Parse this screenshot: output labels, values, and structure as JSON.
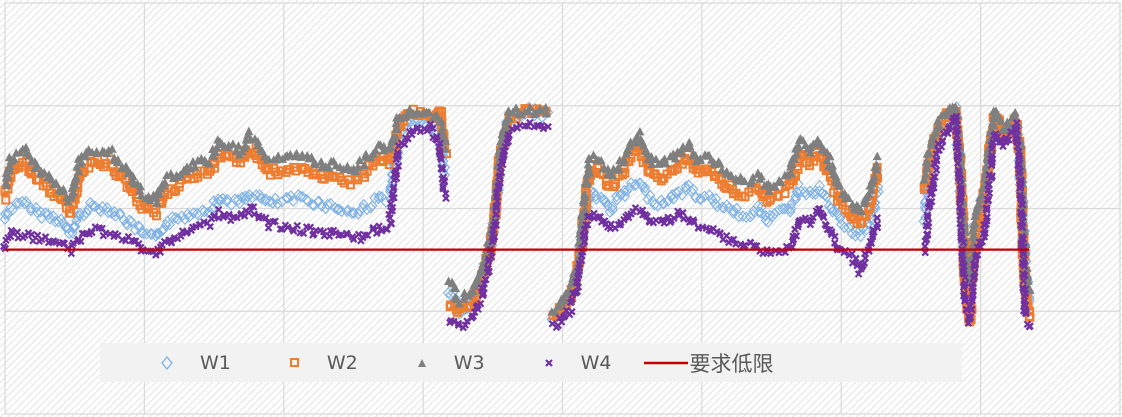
{
  "chart_data": {
    "type": "scatter",
    "title": "",
    "xlabel": "",
    "ylabel": "",
    "xlim": [
      0,
      8
    ],
    "ylim": [
      0,
      4
    ],
    "grid": true,
    "legend_position": "bottom",
    "x": [
      0,
      0.04,
      0.14,
      0.25,
      0.39,
      0.47,
      0.54,
      0.61,
      0.75,
      0.9,
      1.0,
      1.08,
      1.15,
      1.33,
      1.47,
      1.54,
      1.69,
      1.76,
      1.9,
      2.12,
      2.26,
      2.4,
      2.51,
      2.69,
      2.76,
      2.83,
      2.91,
      3.05,
      3.12,
      3.16,
      3.17,
      3.19,
      3.26,
      3.34,
      3.41,
      3.48,
      3.52,
      3.55,
      3.62,
      3.77,
      3.91,
      3.92,
      3.93,
      3.98,
      4.05,
      4.1,
      4.13,
      4.17,
      4.2,
      4.27,
      4.34,
      4.41,
      4.48,
      4.55,
      4.63,
      4.7,
      4.77,
      4.84,
      4.91,
      4.98,
      5.05,
      5.12,
      5.2,
      5.27,
      5.34,
      5.41,
      5.48,
      5.55,
      5.63,
      5.7,
      5.77,
      5.84,
      5.91,
      5.98,
      6.06,
      6.13,
      6.2,
      6.27,
      6.4,
      6.6,
      6.63,
      6.7,
      6.78,
      6.82,
      6.85,
      6.89,
      6.92,
      6.96,
      7.03,
      7.1,
      7.17,
      7.25,
      7.28,
      7.32,
      7.35
    ],
    "series": [
      {
        "name": "W1",
        "marker": "diamond",
        "color": "#7fb2e5",
        "values": [
          1.9,
          2.0,
          2.05,
          1.95,
          1.9,
          1.75,
          1.95,
          2.02,
          2.0,
          1.85,
          1.75,
          1.7,
          1.85,
          1.95,
          2.0,
          2.1,
          2.05,
          2.15,
          2.05,
          2.1,
          2.05,
          2.0,
          1.95,
          2.1,
          2.1,
          2.7,
          2.85,
          2.8,
          2.7,
          2.3,
          null,
          1.2,
          1.0,
          1.05,
          1.25,
          1.6,
          2.0,
          2.4,
          2.9,
          2.95,
          2.9,
          null,
          0.95,
          1.0,
          1.1,
          1.3,
          1.6,
          2.0,
          2.15,
          2.1,
          2.0,
          2.1,
          2.2,
          2.25,
          2.1,
          2.05,
          2.1,
          2.15,
          2.2,
          2.1,
          2.1,
          2.05,
          2.0,
          1.95,
          1.95,
          2.0,
          1.9,
          1.95,
          2.0,
          2.2,
          2.15,
          2.2,
          2.05,
          1.9,
          1.8,
          1.75,
          1.85,
          2.2,
          null,
          1.9,
          2.3,
          2.75,
          2.9,
          2.95,
          2.4,
          1.4,
          1.2,
          1.8,
          2.0,
          2.85,
          2.7,
          2.85,
          2.5,
          1.4,
          1.1
        ]
      },
      {
        "name": "W2",
        "marker": "square",
        "color": "#ed7d31",
        "values": [
          2.1,
          2.35,
          2.45,
          2.25,
          2.1,
          1.96,
          2.35,
          2.44,
          2.44,
          2.2,
          2.0,
          1.96,
          2.15,
          2.3,
          2.35,
          2.54,
          2.44,
          2.59,
          2.35,
          2.39,
          2.3,
          2.3,
          2.25,
          2.49,
          2.44,
          2.8,
          2.95,
          2.9,
          2.95,
          2.5,
          null,
          1.1,
          1.0,
          1.05,
          1.25,
          1.6,
          2.0,
          2.5,
          2.9,
          2.95,
          2.95,
          null,
          0.95,
          1.0,
          1.12,
          1.3,
          1.6,
          2.1,
          2.4,
          2.35,
          2.2,
          2.3,
          2.49,
          2.59,
          2.35,
          2.3,
          2.35,
          2.44,
          2.49,
          2.35,
          2.39,
          2.3,
          2.2,
          2.15,
          2.15,
          2.2,
          2.06,
          2.15,
          2.2,
          2.5,
          2.44,
          2.55,
          2.35,
          2.1,
          1.96,
          1.86,
          2.0,
          2.4,
          null,
          2.15,
          2.45,
          2.8,
          2.95,
          2.95,
          2.5,
          1.3,
          0.9,
          1.7,
          2.15,
          2.9,
          2.7,
          2.85,
          2.55,
          1.2,
          0.95
        ]
      },
      {
        "name": "W3",
        "marker": "triangle",
        "color": "#7f7f7f",
        "values": [
          2.22,
          2.47,
          2.56,
          2.37,
          2.22,
          2.08,
          2.47,
          2.56,
          2.56,
          2.32,
          2.13,
          2.08,
          2.27,
          2.42,
          2.47,
          2.66,
          2.56,
          2.71,
          2.47,
          2.51,
          2.42,
          2.42,
          2.37,
          2.61,
          2.56,
          2.9,
          2.95,
          2.9,
          2.85,
          2.56,
          null,
          1.3,
          1.11,
          1.16,
          1.35,
          1.69,
          2.08,
          2.56,
          2.95,
          2.95,
          2.95,
          null,
          1.0,
          1.05,
          1.2,
          1.4,
          1.69,
          2.2,
          2.5,
          2.47,
          2.32,
          2.42,
          2.61,
          2.71,
          2.47,
          2.42,
          2.47,
          2.56,
          2.61,
          2.47,
          2.51,
          2.42,
          2.32,
          2.27,
          2.27,
          2.32,
          2.18,
          2.27,
          2.32,
          2.66,
          2.56,
          2.66,
          2.47,
          2.22,
          2.08,
          1.98,
          2.13,
          2.51,
          null,
          2.27,
          2.56,
          2.85,
          2.95,
          3.0,
          2.56,
          1.5,
          1.3,
          1.89,
          2.27,
          2.95,
          2.76,
          2.9,
          2.66,
          1.5,
          1.2
        ]
      },
      {
        "name": "W4",
        "marker": "x",
        "color": "#7030a0",
        "values": [
          1.6,
          1.75,
          1.75,
          1.7,
          1.65,
          1.6,
          1.7,
          1.8,
          1.75,
          1.7,
          1.6,
          1.55,
          1.65,
          1.8,
          1.85,
          1.95,
          1.9,
          2.0,
          1.85,
          1.8,
          1.75,
          1.75,
          1.7,
          1.8,
          1.85,
          2.6,
          2.75,
          2.8,
          2.6,
          2.1,
          null,
          0.9,
          0.85,
          0.9,
          1.1,
          1.5,
          1.9,
          2.3,
          2.75,
          2.8,
          2.8,
          null,
          0.85,
          0.9,
          1.0,
          1.2,
          1.5,
          1.85,
          1.95,
          1.9,
          1.8,
          1.85,
          1.95,
          2.0,
          1.85,
          1.85,
          1.9,
          1.95,
          1.9,
          1.8,
          1.8,
          1.75,
          1.7,
          1.65,
          1.65,
          1.6,
          1.6,
          1.6,
          1.6,
          1.9,
          1.85,
          2.0,
          1.8,
          1.6,
          1.55,
          1.4,
          1.6,
          1.9,
          null,
          1.6,
          2.0,
          2.6,
          2.8,
          2.9,
          2.2,
          1.1,
          0.9,
          1.5,
          1.8,
          2.7,
          2.6,
          2.8,
          2.4,
          1.0,
          0.85
        ]
      }
    ],
    "reference_line": {
      "name": "要求低限",
      "value": 1.6,
      "x_range": [
        0,
        7.35
      ],
      "color": "#c00000"
    }
  }
}
